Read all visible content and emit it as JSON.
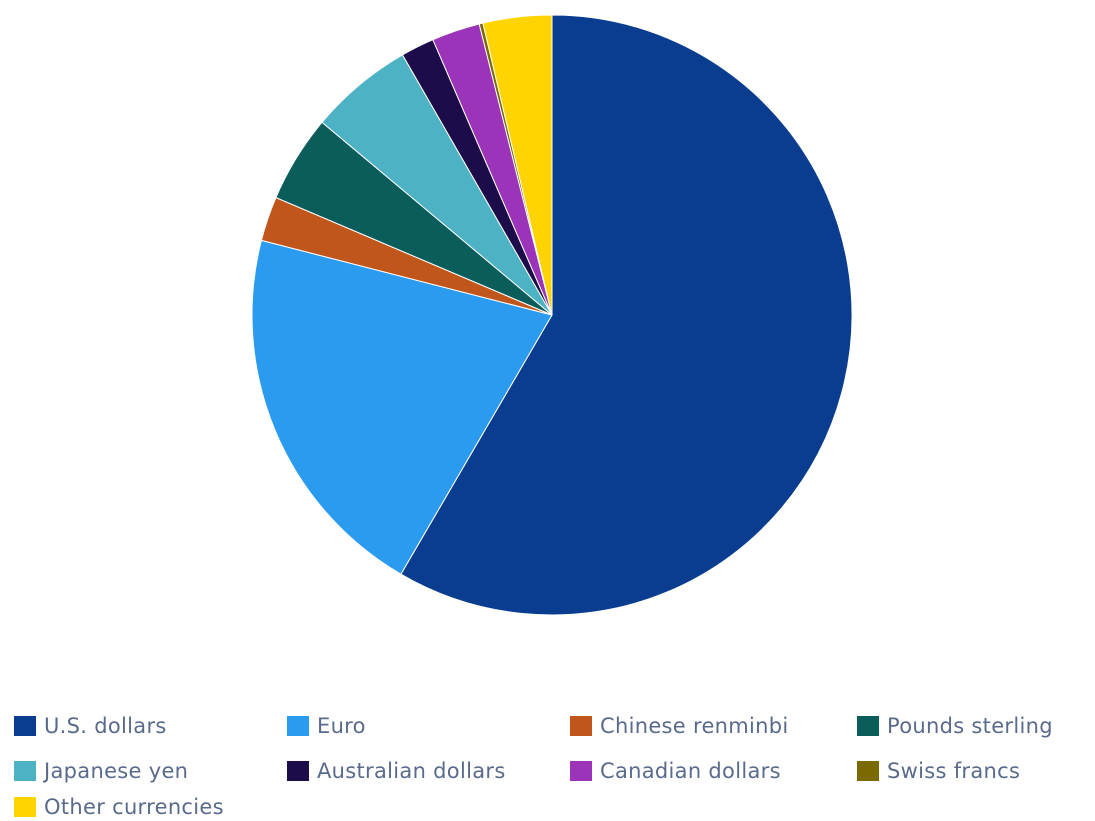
{
  "chart_data": {
    "type": "pie",
    "title": "",
    "legend_position": "bottom",
    "start_angle_deg": 0,
    "direction": "clockwise",
    "slices": [
      {
        "label": "U.S. dollars",
        "value": 58.4,
        "color": "#0a3d8f"
      },
      {
        "label": "Euro",
        "value": 20.6,
        "color": "#2b9bf0"
      },
      {
        "label": "Chinese renminbi",
        "value": 2.4,
        "color": "#c0561b"
      },
      {
        "label": "Pounds sterling",
        "value": 4.7,
        "color": "#0b5d5c"
      },
      {
        "label": "Japanese yen",
        "value": 5.6,
        "color": "#4db3c4"
      },
      {
        "label": "Australian dollars",
        "value": 1.8,
        "color": "#1c0d4a"
      },
      {
        "label": "Canadian dollars",
        "value": 2.6,
        "color": "#9b34b8"
      },
      {
        "label": "Swiss francs",
        "value": 0.2,
        "color": "#7a6a00"
      },
      {
        "label": "Other currencies",
        "value": 3.7,
        "color": "#ffd400"
      }
    ]
  }
}
